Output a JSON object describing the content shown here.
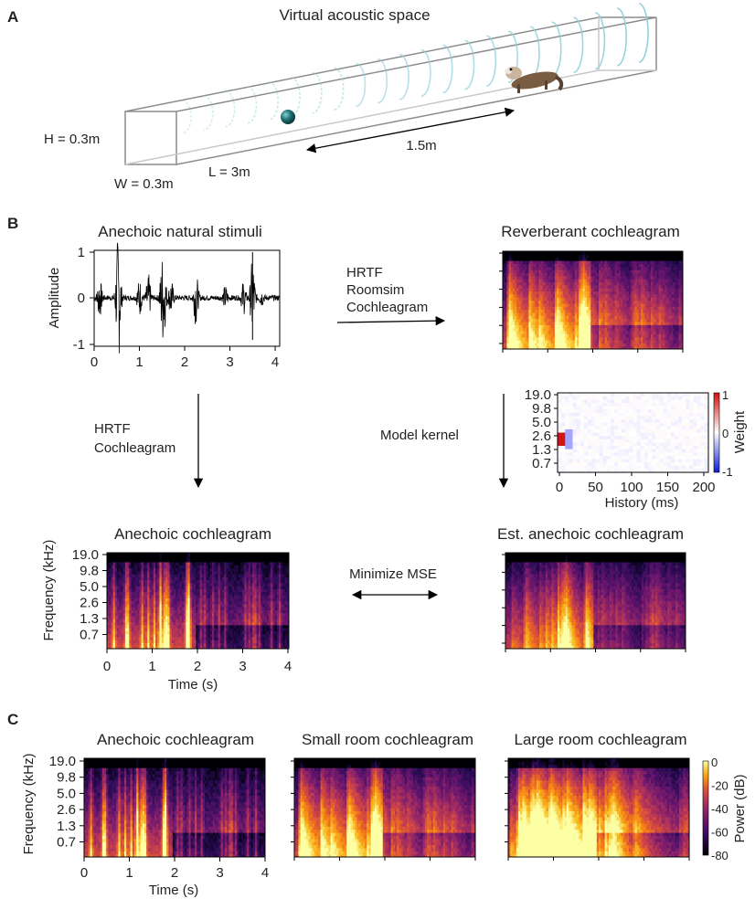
{
  "panel_a": {
    "letter": "A",
    "title": "Virtual acoustic space",
    "height_label": "H = 0.3m",
    "width_label": "W = 0.3m",
    "length_label": "L = 3m",
    "distance_label": "1.5m"
  },
  "panel_b": {
    "letter": "B",
    "waveform": {
      "title": "Anechoic natural stimuli",
      "ylabel": "Amplitude",
      "yticks": [
        "1",
        "0",
        "-1"
      ],
      "xticks": [
        "0",
        "1",
        "2",
        "3",
        "4"
      ]
    },
    "reverb": {
      "title": "Reverberant cochleagram"
    },
    "arrow_top": [
      "HRTF",
      "Roomsim",
      "Cochleagram"
    ],
    "arrow_left": [
      "HRTF",
      "Cochleagram"
    ],
    "kernel": {
      "yticks": [
        "19.0",
        "9.8",
        "5.0",
        "2.6",
        "1.3",
        "0.7"
      ],
      "xticks": [
        "0",
        "50",
        "100",
        "150",
        "200"
      ],
      "xlabel": "History (ms)",
      "cbar_ticks": [
        "1",
        "0",
        "-1"
      ],
      "cbar_label": "Weight"
    },
    "model_kernel_label": "Model kernel",
    "anechoic": {
      "title": "Anechoic cochleagram",
      "ylabel": "Frequency (kHz)",
      "yticks": [
        "19.0",
        "9.8",
        "5.0",
        "2.6",
        "1.3",
        "0.7"
      ],
      "xticks": [
        "0",
        "1",
        "2",
        "3",
        "4"
      ],
      "xlabel": "Time (s)"
    },
    "mse_label": "Minimize MSE",
    "estimated": {
      "title": "Est. anechoic cochleagram"
    }
  },
  "panel_c": {
    "letter": "C",
    "titles": [
      "Anechoic cochleagram",
      "Small room cochleagram",
      "Large room cochleagram"
    ],
    "ylabel": "Frequency (kHz)",
    "yticks": [
      "19.0",
      "9.8",
      "5.0",
      "2.6",
      "1.3",
      "0.7"
    ],
    "xticks": [
      "0",
      "1",
      "2",
      "3",
      "4"
    ],
    "xlabel": "Time (s)",
    "cbar_ticks": [
      "0",
      "-20",
      "-40",
      "-60",
      "-80"
    ],
    "cbar_label": "Power (dB)"
  },
  "colors": {
    "inferno_low": "#000004",
    "inferno_mid": "#b73779",
    "inferno_high": "#fcffa4",
    "wave_blue": "#8ecfd8",
    "ball": "#1f6f73"
  }
}
